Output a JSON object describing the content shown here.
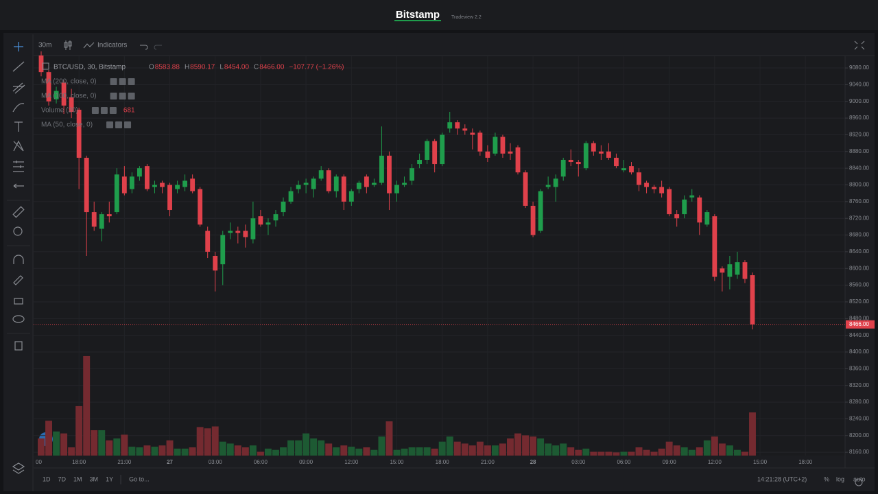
{
  "header": {
    "brand": "Bitstamp",
    "version": "Tradeview 2.2"
  },
  "toolbar": {
    "interval": "30m",
    "indicators": "Indicators"
  },
  "legend": {
    "symbol": "BTC/USD, 30, Bitstamp",
    "prefixes": [
      "O",
      "H",
      "L",
      "C"
    ],
    "ohlc": [
      "8583.88",
      "8590.17",
      "8454.00",
      "8466.00"
    ],
    "change": "−107.77 (−1.26%)",
    "studies": [
      "MA (200, close, 0)",
      "MA (100, close, 0)",
      "Volume (20)",
      "MA (50, close, 0)"
    ]
  },
  "chart_data": {
    "type": "candlestick",
    "up_color": "#1f9d4c",
    "down_color": "#e0414b",
    "up_volume_color": "#1d5a33",
    "down_volume_color": "#742a30",
    "grid": true,
    "open": [
      9110,
      9070,
      9005,
      9045,
      9010,
      8980,
      8865,
      8735,
      8695,
      8730,
      8735,
      8820,
      8790,
      8820,
      8845,
      8795,
      8805,
      8800,
      8790,
      8795,
      8815,
      8790,
      8690,
      8630,
      8610,
      8685,
      8690,
      8690,
      8670,
      8725,
      8705,
      8715,
      8735,
      8760,
      8790,
      8800,
      8790,
      8815,
      8835,
      8785,
      8820,
      8760,
      8790,
      8820,
      8800,
      8805,
      8870,
      8780,
      8800,
      8810,
      8850,
      8860,
      8905,
      8850,
      8935,
      8950,
      8935,
      8925,
      8925,
      8880,
      8875,
      8915,
      8880,
      8890,
      8830,
      8750,
      8690,
      8795,
      8795,
      8820,
      8860,
      8855,
      8840,
      8900,
      8880,
      8880,
      8865,
      8835,
      8845,
      8830,
      8805,
      8795,
      8795,
      8790,
      8730,
      8730,
      8770,
      8770,
      8705,
      8725,
      8600,
      8580,
      8585,
      8615,
      8583.88
    ],
    "high": [
      9120,
      9075,
      9035,
      9050,
      9030,
      8985,
      8870,
      8760,
      8735,
      8760,
      8840,
      8845,
      8830,
      8845,
      8850,
      8810,
      8810,
      8805,
      8810,
      8825,
      8825,
      8795,
      8700,
      8640,
      8690,
      8710,
      8700,
      8705,
      8760,
      8740,
      8720,
      8740,
      8770,
      8795,
      8810,
      8815,
      8820,
      8845,
      8840,
      8825,
      8825,
      8790,
      8810,
      8825,
      8815,
      8940,
      8880,
      8810,
      8820,
      8850,
      8875,
      8910,
      8910,
      8925,
      8975,
      8955,
      8945,
      8935,
      8930,
      8895,
      8925,
      8920,
      8900,
      8895,
      8835,
      8760,
      8790,
      8820,
      8825,
      8865,
      8885,
      8860,
      8905,
      8905,
      8895,
      8900,
      8875,
      8860,
      8855,
      8840,
      8810,
      8800,
      8810,
      8795,
      8740,
      8775,
      8790,
      8775,
      8740,
      8730,
      8605,
      8630,
      8640,
      8620,
      8590.17
    ],
    "low": [
      9060,
      8990,
      8995,
      8970,
      8960,
      8790,
      8630,
      8690,
      8665,
      8710,
      8730,
      8775,
      8780,
      8810,
      8785,
      8780,
      8780,
      8725,
      8780,
      8785,
      8780,
      8700,
      8625,
      8545,
      8560,
      8670,
      8660,
      8650,
      8660,
      8700,
      8680,
      8700,
      8725,
      8755,
      8780,
      8780,
      8770,
      8810,
      8780,
      8770,
      8740,
      8750,
      8780,
      8780,
      8795,
      8800,
      8740,
      8760,
      8795,
      8800,
      8840,
      8850,
      8830,
      8845,
      8925,
      8920,
      8920,
      8885,
      8870,
      8855,
      8870,
      8865,
      8860,
      8825,
      8745,
      8675,
      8685,
      8790,
      8760,
      8810,
      8845,
      8820,
      8835,
      8870,
      8860,
      8860,
      8840,
      8830,
      8825,
      8785,
      8780,
      8780,
      8770,
      8725,
      8700,
      8720,
      8760,
      8680,
      8700,
      8570,
      8545,
      8550,
      8575,
      8565,
      8454
    ],
    "close": [
      9070,
      9000,
      9025,
      8990,
      8975,
      8865,
      8735,
      8700,
      8730,
      8725,
      8825,
      8780,
      8820,
      8840,
      8790,
      8800,
      8795,
      8740,
      8800,
      8810,
      8785,
      8705,
      8640,
      8595,
      8680,
      8690,
      8685,
      8675,
      8720,
      8705,
      8710,
      8730,
      8760,
      8785,
      8800,
      8805,
      8815,
      8835,
      8785,
      8820,
      8760,
      8785,
      8805,
      8795,
      8805,
      8870,
      8780,
      8800,
      8805,
      8840,
      8860,
      8905,
      8850,
      8920,
      8950,
      8935,
      8930,
      8920,
      8880,
      8865,
      8915,
      8875,
      8875,
      8830,
      8750,
      8680,
      8785,
      8800,
      8815,
      8860,
      8855,
      8850,
      8900,
      8880,
      8875,
      8865,
      8845,
      8840,
      8830,
      8800,
      8795,
      8790,
      8780,
      8730,
      8720,
      8765,
      8775,
      8710,
      8735,
      8580,
      8590,
      8610,
      8615,
      8575,
      8466
    ],
    "volume": [
      270,
      550,
      380,
      350,
      130,
      780,
      1570,
      400,
      400,
      240,
      270,
      330,
      140,
      130,
      160,
      140,
      160,
      240,
      110,
      110,
      130,
      450,
      430,
      460,
      220,
      190,
      160,
      130,
      160,
      60,
      110,
      90,
      130,
      240,
      240,
      350,
      270,
      240,
      190,
      130,
      160,
      140,
      110,
      130,
      90,
      300,
      540,
      90,
      110,
      130,
      130,
      130,
      110,
      220,
      300,
      220,
      190,
      160,
      220,
      160,
      160,
      190,
      270,
      350,
      320,
      300,
      270,
      190,
      160,
      190,
      130,
      90,
      110,
      60,
      60,
      60,
      50,
      60,
      60,
      130,
      90,
      60,
      110,
      220,
      160,
      130,
      90,
      130,
      240,
      300,
      190,
      160,
      90,
      60,
      681
    ],
    "ylim": [
      8152,
      9108
    ],
    "vlim": [
      0,
      6300
    ],
    "yticks": [
      {
        "value": 9080,
        "label": "9080.00"
      },
      {
        "value": 9040,
        "label": "9040.00"
      },
      {
        "value": 9000,
        "label": "9000.00"
      },
      {
        "value": 8960,
        "label": "8960.00"
      },
      {
        "value": 8920,
        "label": "8920.00"
      },
      {
        "value": 8880,
        "label": "8880.00"
      },
      {
        "value": 8840,
        "label": "8840.00"
      },
      {
        "value": 8800,
        "label": "8800.00"
      },
      {
        "value": 8760,
        "label": "8760.00"
      },
      {
        "value": 8720,
        "label": "8720.00"
      },
      {
        "value": 8680,
        "label": "8680.00"
      },
      {
        "value": 8640,
        "label": "8640.00"
      },
      {
        "value": 8600,
        "label": "8600.00"
      },
      {
        "value": 8560,
        "label": "8560.00"
      },
      {
        "value": 8520,
        "label": "8520.00"
      },
      {
        "value": 8480,
        "label": "8480.00"
      },
      {
        "value": 8440,
        "label": "8440.00"
      },
      {
        "value": 8400,
        "label": "8400.00"
      },
      {
        "value": 8360,
        "label": "8360.00"
      },
      {
        "value": 8320,
        "label": "8320.00"
      },
      {
        "value": 8280,
        "label": "8280.00"
      },
      {
        "value": 8240,
        "label": "8240.00"
      },
      {
        "value": 8200,
        "label": "8200.00"
      },
      {
        "value": 8160,
        "label": "8160.00"
      }
    ],
    "xticks": [
      "00",
      "18:00",
      "21:00",
      "27",
      "03:00",
      "06:00",
      "09:00",
      "12:00",
      "15:00",
      "18:00",
      "21:00",
      "28",
      "03:00",
      "06:00",
      "09:00",
      "12:00",
      "15:00",
      "18:00"
    ],
    "last_price": {
      "value": 8466,
      "label": "8466.00"
    }
  },
  "footer": {
    "ranges": [
      "1D",
      "7D",
      "1M",
      "3M",
      "1Y"
    ],
    "goto": "Go to...",
    "clock": "14:21:28 (UTC+2)",
    "options": [
      "%",
      "log",
      "auto"
    ]
  }
}
